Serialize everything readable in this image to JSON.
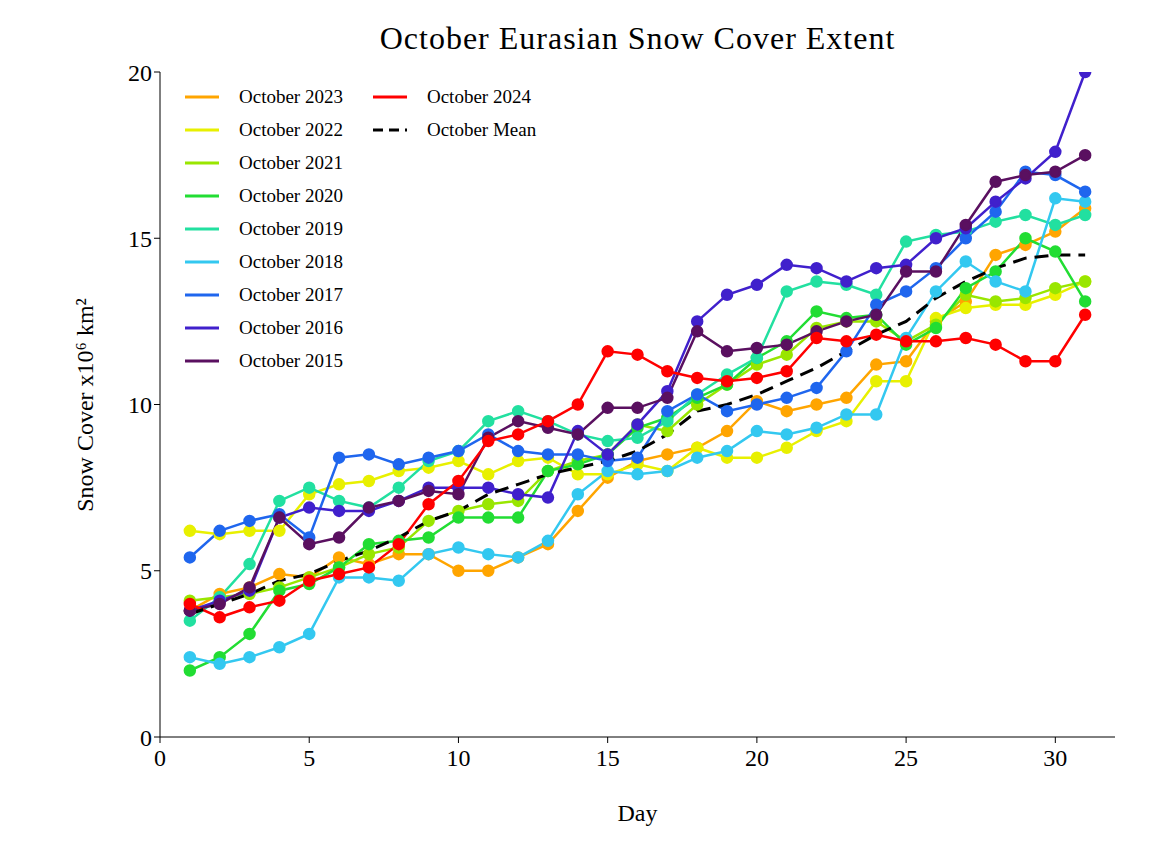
{
  "chart_data": {
    "type": "line",
    "title": "October Eurasian Snow Cover Extent",
    "xlabel": "Day",
    "ylabel": "Snow Cover x10⁶ km²",
    "x": [
      1,
      2,
      3,
      4,
      5,
      6,
      7,
      8,
      9,
      10,
      11,
      12,
      13,
      14,
      15,
      16,
      17,
      18,
      19,
      20,
      21,
      22,
      23,
      24,
      25,
      26,
      27,
      28,
      29,
      30,
      31
    ],
    "xlim": [
      0,
      32
    ],
    "xticks": [
      0,
      5,
      10,
      15,
      20,
      25,
      30
    ],
    "ylim": [
      0,
      20
    ],
    "yticks": [
      0,
      5,
      10,
      15,
      20
    ],
    "grid": false,
    "legend": "upper left",
    "series": [
      {
        "name": "October 2023",
        "color": "#ffa500",
        "marker": "circle",
        "line_style": "solid",
        "values": [
          3.8,
          4.3,
          4.5,
          4.9,
          4.8,
          5.4,
          5.2,
          5.5,
          5.5,
          5.0,
          5.0,
          5.4,
          5.8,
          6.8,
          7.8,
          8.3,
          8.5,
          8.7,
          9.2,
          10.1,
          9.8,
          10.0,
          10.2,
          11.2,
          11.3,
          12.5,
          13.1,
          14.5,
          14.8,
          15.2,
          15.9
        ]
      },
      {
        "name": "October 2022",
        "color": "#e8f000",
        "marker": "circle",
        "line_style": "solid",
        "values": [
          6.2,
          6.1,
          6.2,
          6.2,
          7.3,
          7.6,
          7.7,
          8.0,
          8.1,
          8.3,
          7.9,
          8.3,
          8.4,
          7.9,
          7.9,
          8.2,
          8.0,
          8.7,
          8.4,
          8.4,
          8.7,
          9.2,
          9.5,
          10.7,
          10.7,
          12.6,
          12.9,
          13.0,
          13.0,
          13.3,
          13.7
        ]
      },
      {
        "name": "October 2021",
        "color": "#99e600",
        "marker": "circle",
        "line_style": "solid",
        "values": [
          4.1,
          4.2,
          4.3,
          4.5,
          4.8,
          5.1,
          5.5,
          5.7,
          6.5,
          6.8,
          7.0,
          7.1,
          8.0,
          8.3,
          8.5,
          9.4,
          9.2,
          10.0,
          10.6,
          11.2,
          11.5,
          12.3,
          12.5,
          12.5,
          11.9,
          12.4,
          13.3,
          13.1,
          13.2,
          13.5,
          13.7
        ]
      },
      {
        "name": "October 2020",
        "color": "#22dd33",
        "marker": "circle",
        "line_style": "solid",
        "values": [
          2.0,
          2.4,
          3.1,
          4.4,
          4.6,
          5.1,
          5.8,
          5.9,
          6.0,
          6.6,
          6.6,
          6.6,
          8.0,
          8.2,
          8.5,
          9.3,
          9.6,
          10.2,
          10.6,
          11.4,
          11.9,
          12.8,
          12.6,
          12.7,
          11.8,
          12.3,
          13.5,
          14.0,
          15.0,
          14.6,
          13.1
        ]
      },
      {
        "name": "October 2019",
        "color": "#22e0a0",
        "marker": "circle",
        "line_style": "solid",
        "values": [
          3.5,
          4.2,
          5.2,
          7.1,
          7.5,
          7.1,
          6.9,
          7.5,
          8.3,
          8.6,
          9.5,
          9.8,
          9.5,
          9.1,
          8.9,
          9.0,
          9.5,
          10.3,
          10.9,
          11.4,
          13.4,
          13.7,
          13.6,
          13.3,
          14.9,
          15.1,
          15.2,
          15.5,
          15.7,
          15.4,
          15.7
        ]
      },
      {
        "name": "October 2018",
        "color": "#33c8f0",
        "marker": "circle",
        "line_style": "solid",
        "values": [
          2.4,
          2.2,
          2.4,
          2.7,
          3.1,
          4.8,
          4.8,
          4.7,
          5.5,
          5.7,
          5.5,
          5.4,
          5.9,
          7.3,
          8.0,
          7.9,
          8.0,
          8.4,
          8.6,
          9.2,
          9.1,
          9.3,
          9.7,
          9.7,
          12.0,
          13.4,
          14.3,
          13.7,
          13.4,
          16.2,
          16.1
        ]
      },
      {
        "name": "October 2017",
        "color": "#1f66ee",
        "marker": "circle",
        "line_style": "solid",
        "values": [
          5.4,
          6.2,
          6.5,
          6.7,
          6.0,
          8.4,
          8.5,
          8.2,
          8.4,
          8.6,
          9.1,
          8.6,
          8.5,
          8.5,
          8.3,
          8.4,
          9.8,
          10.3,
          9.8,
          10.0,
          10.2,
          10.5,
          11.6,
          13.0,
          13.4,
          14.1,
          15.0,
          15.8,
          17.0,
          16.9,
          16.4
        ]
      },
      {
        "name": "October 2016",
        "color": "#4020cc",
        "marker": "circle",
        "line_style": "solid",
        "values": [
          3.8,
          4.1,
          4.4,
          6.6,
          6.9,
          6.8,
          6.8,
          7.1,
          7.5,
          7.5,
          7.5,
          7.3,
          7.2,
          9.2,
          8.5,
          9.4,
          10.4,
          12.5,
          13.3,
          13.6,
          14.2,
          14.1,
          13.7,
          14.1,
          14.2,
          15.0,
          15.3,
          16.1,
          16.8,
          17.6,
          20.0
        ]
      },
      {
        "name": "October 2015",
        "color": "#5a1060",
        "marker": "circle",
        "line_style": "solid",
        "values": [
          3.8,
          4.0,
          4.5,
          6.6,
          5.8,
          6.0,
          6.9,
          7.1,
          7.4,
          7.3,
          9.0,
          9.5,
          9.3,
          9.1,
          9.9,
          9.9,
          10.2,
          12.2,
          11.6,
          11.7,
          11.8,
          12.2,
          12.5,
          12.7,
          14.0,
          14.0,
          15.4,
          16.7,
          16.9,
          17.0,
          17.5
        ]
      },
      {
        "name": "October 2024",
        "color": "#ff0000",
        "marker": "circle",
        "line_style": "solid",
        "values": [
          4.0,
          3.6,
          3.9,
          4.1,
          4.7,
          4.9,
          5.1,
          5.8,
          7.0,
          7.7,
          8.9,
          9.1,
          9.5,
          10.0,
          11.6,
          11.5,
          11.0,
          10.8,
          10.7,
          10.8,
          11.0,
          12.0,
          11.9,
          12.1,
          11.9,
          11.9,
          12.0,
          11.8,
          11.3,
          11.3,
          12.7
        ]
      },
      {
        "name": "October Mean",
        "color": "#000000",
        "marker": "none",
        "line_style": "dashed",
        "values": [
          3.7,
          4.0,
          4.3,
          4.7,
          4.9,
          5.3,
          5.6,
          6.0,
          6.5,
          6.8,
          7.3,
          7.6,
          7.9,
          8.1,
          8.3,
          8.6,
          9.1,
          9.8,
          10.0,
          10.3,
          10.7,
          11.1,
          11.6,
          12.1,
          12.5,
          13.2,
          13.7,
          14.1,
          14.4,
          14.5,
          14.5
        ]
      }
    ]
  }
}
